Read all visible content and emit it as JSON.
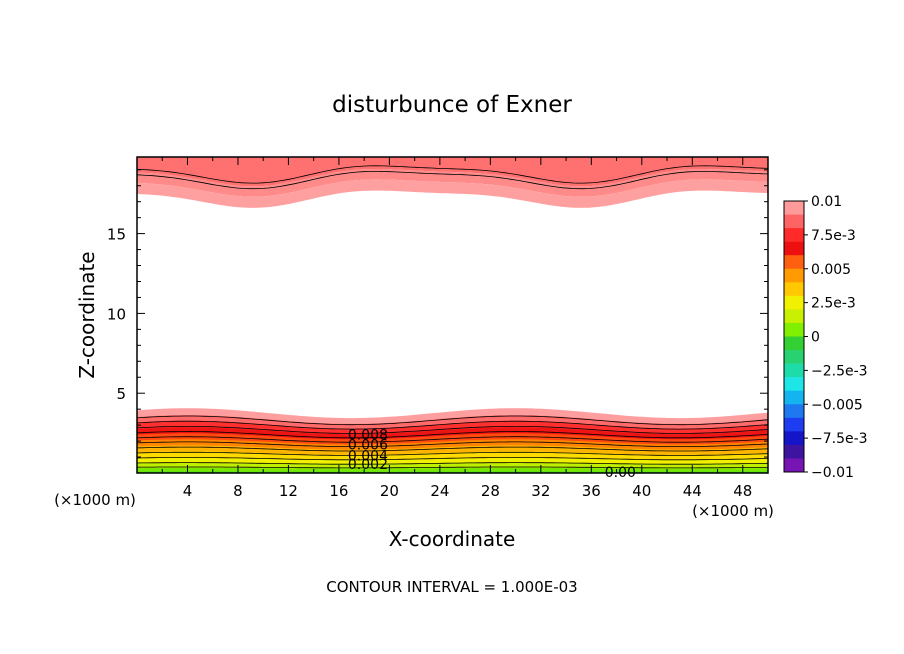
{
  "chart_data": {
    "type": "heatmap",
    "title": "disturbunce of Exner",
    "xlabel": "X-coordinate",
    "ylabel": "Z-coordinate",
    "x_unit_left": "(×1000 m)",
    "x_unit_right": "(×1000 m)",
    "xlim": [
      0,
      50
    ],
    "ylim": [
      0,
      19.8
    ],
    "x_ticks": [
      {
        "v": 4,
        "label": "4"
      },
      {
        "v": 8,
        "label": "8"
      },
      {
        "v": 12,
        "label": "12"
      },
      {
        "v": 16,
        "label": "16"
      },
      {
        "v": 20,
        "label": "20"
      },
      {
        "v": 24,
        "label": "24"
      },
      {
        "v": 28,
        "label": "28"
      },
      {
        "v": 32,
        "label": "32"
      },
      {
        "v": 36,
        "label": "36"
      },
      {
        "v": 40,
        "label": "40"
      },
      {
        "v": 44,
        "label": "44"
      },
      {
        "v": 48,
        "label": "48"
      }
    ],
    "y_ticks": [
      {
        "v": 5,
        "label": "5"
      },
      {
        "v": 10,
        "label": "10"
      },
      {
        "v": 15,
        "label": "15"
      }
    ],
    "colorbar": {
      "min": -0.01,
      "max": 0.01,
      "labels": [
        "0.01",
        "7.5e-3",
        "0.005",
        "2.5e-3",
        "0",
        "−2.5e-3",
        "−0.005",
        "−7.5e-3",
        "−0.01"
      ],
      "colors": [
        "#ff9a9a",
        "#ff6464",
        "#ff2a2a",
        "#ee1010",
        "#ff6010",
        "#ff9a00",
        "#ffc800",
        "#f0f000",
        "#c8f000",
        "#80f000",
        "#32d032",
        "#28d270",
        "#1edcaa",
        "#1ee6e6",
        "#14b4f0",
        "#1e78f0",
        "#1e3cf0",
        "#1414c8",
        "#3c14a0",
        "#7814b4"
      ]
    },
    "contour_labels": [
      {
        "text": "0.008",
        "x": 18.3,
        "z": 2.4
      },
      {
        "text": "0.006",
        "x": 18.3,
        "z": 1.8
      },
      {
        "text": "0.004",
        "x": 18.3,
        "z": 1.1
      },
      {
        "text": "0.002",
        "x": 18.3,
        "z": 0.55
      },
      {
        "text": "0.00",
        "x": 38.3,
        "z": 0.05
      }
    ],
    "footer": "CONTOUR INTERVAL = 1.000E-03"
  }
}
